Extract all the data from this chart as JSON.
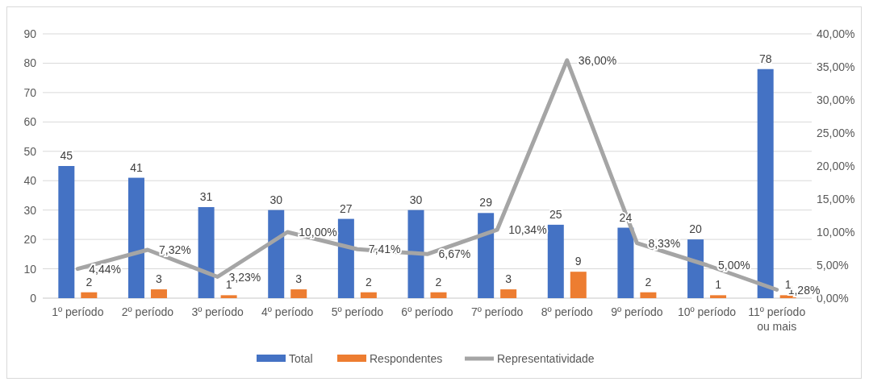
{
  "chart_data": {
    "type": "bar",
    "categories": [
      "1º período",
      "2º período",
      "3º período",
      "4º período",
      "5º período",
      "6º período",
      "7º período",
      "8º período",
      "9º período",
      "10º período",
      "11º período ou mais"
    ],
    "series": [
      {
        "name": "Total",
        "color": "#4472c4",
        "values": [
          45,
          41,
          31,
          30,
          27,
          30,
          29,
          25,
          24,
          20,
          78
        ],
        "value_labels": [
          "45",
          "41",
          "31",
          "30",
          "27",
          "30",
          "29",
          "25",
          "24",
          "20",
          "78"
        ]
      },
      {
        "name": "Respondentes",
        "color": "#ed7d31",
        "values": [
          2,
          3,
          1,
          3,
          2,
          2,
          3,
          9,
          2,
          1,
          1
        ],
        "value_labels": [
          "2",
          "3",
          "1",
          "3",
          "2",
          "2",
          "3",
          "9",
          "2",
          "1",
          "1"
        ]
      },
      {
        "name": "Representatividade",
        "type": "line",
        "axis": "y2",
        "color": "#a5a5a5",
        "values": [
          4.44,
          7.32,
          3.23,
          10.0,
          7.41,
          6.67,
          10.34,
          36.0,
          8.33,
          5.0,
          1.28
        ],
        "value_labels": [
          "4,44%",
          "7,32%",
          "3,23%",
          "10,00%",
          "7,41%",
          "6,67%",
          "10,34%",
          "36,00%",
          "8,33%",
          "5,00%",
          "1,28%"
        ]
      }
    ],
    "ylim": [
      0,
      90
    ],
    "yticks": [
      0,
      10,
      20,
      30,
      40,
      50,
      60,
      70,
      80,
      90
    ],
    "y2lim": [
      0,
      40
    ],
    "y2ticks": [
      {
        "value": 0,
        "label": "0,00%"
      },
      {
        "value": 5,
        "label": "5,00%"
      },
      {
        "value": 10,
        "label": "10,00%"
      },
      {
        "value": 15,
        "label": "15,00%"
      },
      {
        "value": 20,
        "label": "20,00%"
      },
      {
        "value": 25,
        "label": "25,00%"
      },
      {
        "value": 30,
        "label": "30,00%"
      },
      {
        "value": 35,
        "label": "35,00%"
      },
      {
        "value": 40,
        "label": "40,00%"
      }
    ],
    "grid": "y",
    "legend": "bottom",
    "marker": "none",
    "line_style": "solid"
  }
}
